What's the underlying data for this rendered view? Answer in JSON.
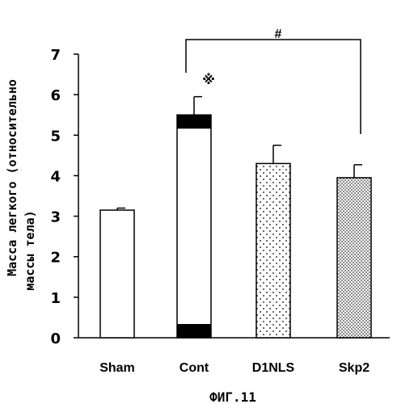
{
  "chart_data": {
    "type": "bar",
    "ylabel": [
      "Масса легкого (относительно",
      "массы тела)"
    ],
    "categories": [
      "Sham",
      "Cont",
      "D1NLS",
      "Skp2"
    ],
    "values": [
      3.15,
      5.5,
      4.3,
      3.95
    ],
    "errors": [
      0.05,
      0.45,
      0.45,
      0.32
    ],
    "patterns": [
      "plain",
      "plain-dark-caps",
      "sparse-dots",
      "dense-dots"
    ],
    "ylim": [
      0,
      7
    ],
    "yticks": [
      0,
      1,
      2,
      3,
      4,
      5,
      6,
      7
    ],
    "annotations": {
      "significance_mark": "※",
      "bracket_label": "#",
      "bracket_from": "Cont",
      "bracket_to": "Skp2"
    },
    "figure_caption": "ФИГ.11",
    "grid": false,
    "colors": {
      "bar_outline": "#000000",
      "bar_fill": "#ffffff",
      "cap_fill": "#000000"
    }
  }
}
